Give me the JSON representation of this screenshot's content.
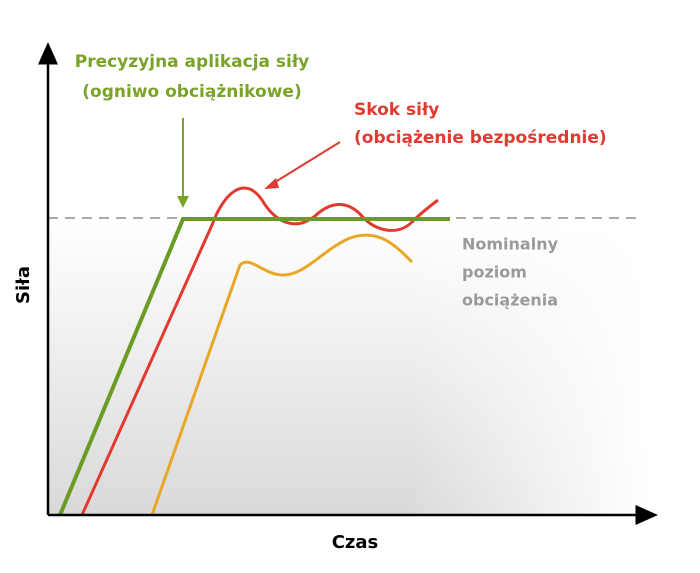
{
  "axes": {
    "y_label": "Siła",
    "x_label": "Czas"
  },
  "annotations": {
    "precise": [
      "Precyzyjna aplikacja siły",
      "(ogniwo obciążnikowe)"
    ],
    "jump": [
      "Skok siły",
      "(obciążenie bezpośrednie)"
    ],
    "nominal": [
      "Nominalny",
      "poziom",
      "obciążenia"
    ]
  }
}
